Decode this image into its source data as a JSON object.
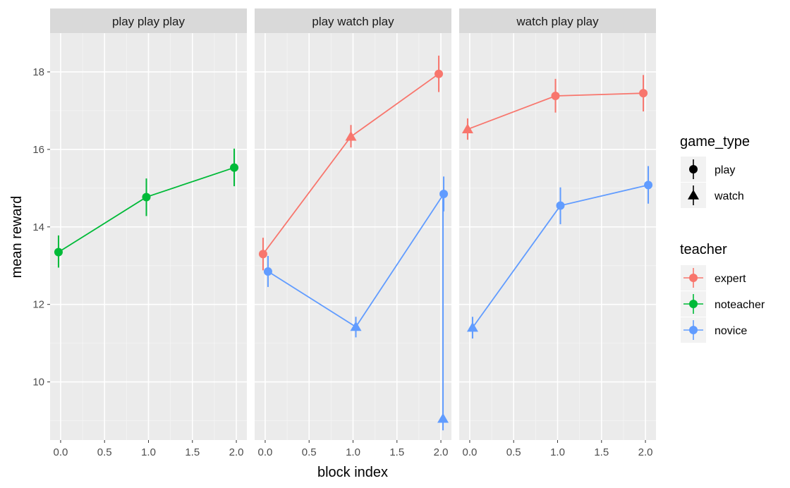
{
  "chart_data": {
    "type": "line",
    "xlabel": "block index",
    "ylabel": "mean reward",
    "xlim": [
      -0.12,
      2.12
    ],
    "ylim": [
      8.5,
      19.0
    ],
    "x_ticks": [
      "0.0",
      "0.5",
      "1.0",
      "1.5",
      "2.0"
    ],
    "y_ticks": [
      "10",
      "12",
      "14",
      "16",
      "18"
    ],
    "grid": true,
    "legend_placement": "right",
    "colors": {
      "expert": "#F8766D",
      "noteacher": "#00BA38",
      "novice": "#619CFF"
    },
    "panels": [
      {
        "title": "play play play",
        "series": [
          {
            "teacher": "noteacher",
            "points": [
              {
                "x": 0,
                "y": 13.35,
                "lo": 12.95,
                "hi": 13.78,
                "game_type": "play"
              },
              {
                "x": 1,
                "y": 14.77,
                "lo": 14.28,
                "hi": 15.25,
                "game_type": "play"
              },
              {
                "x": 2,
                "y": 15.53,
                "lo": 15.05,
                "hi": 16.02,
                "game_type": "play"
              }
            ]
          }
        ]
      },
      {
        "title": "play watch play",
        "series": [
          {
            "teacher": "expert",
            "points": [
              {
                "x": 0,
                "y": 13.3,
                "lo": 12.88,
                "hi": 13.72,
                "game_type": "play"
              },
              {
                "x": 1,
                "y": 16.33,
                "lo": 16.05,
                "hi": 16.63,
                "game_type": "watch"
              },
              {
                "x": 2,
                "y": 17.95,
                "lo": 17.48,
                "hi": 18.42,
                "game_type": "play"
              }
            ]
          },
          {
            "teacher": "novice",
            "points": [
              {
                "x": 0,
                "y": 12.85,
                "lo": 12.45,
                "hi": 13.25,
                "game_type": "play"
              },
              {
                "x": 1,
                "y": 11.42,
                "lo": 11.15,
                "hi": 11.68,
                "game_type": "watch"
              },
              {
                "x": 2,
                "y": 14.85,
                "lo": 14.4,
                "hi": 15.3,
                "game_type": "play"
              }
            ]
          },
          {
            "teacher": "novice",
            "points": [
              {
                "x": 2,
                "y": 9.05,
                "lo": 8.75,
                "hi": 14.85,
                "game_type": "watch"
              }
            ]
          }
        ]
      },
      {
        "title": "watch play play",
        "series": [
          {
            "teacher": "expert",
            "points": [
              {
                "x": 0,
                "y": 16.52,
                "lo": 16.25,
                "hi": 16.8,
                "game_type": "watch"
              },
              {
                "x": 1,
                "y": 17.38,
                "lo": 16.95,
                "hi": 17.82,
                "game_type": "play"
              },
              {
                "x": 2,
                "y": 17.45,
                "lo": 16.98,
                "hi": 17.92,
                "game_type": "play"
              }
            ]
          },
          {
            "teacher": "novice",
            "points": [
              {
                "x": 0,
                "y": 11.4,
                "lo": 11.12,
                "hi": 11.68,
                "game_type": "watch"
              },
              {
                "x": 1,
                "y": 14.55,
                "lo": 14.07,
                "hi": 15.02,
                "game_type": "play"
              },
              {
                "x": 2,
                "y": 15.08,
                "lo": 14.6,
                "hi": 15.57,
                "game_type": "play"
              }
            ]
          }
        ]
      }
    ],
    "legends": [
      {
        "title": "game_type",
        "entries": [
          {
            "label": "play",
            "shape": "circle"
          },
          {
            "label": "watch",
            "shape": "triangle"
          }
        ]
      },
      {
        "title": "teacher",
        "entries": [
          {
            "label": "expert",
            "color": "#F8766D"
          },
          {
            "label": "noteacher",
            "color": "#00BA38"
          },
          {
            "label": "novice",
            "color": "#619CFF"
          }
        ]
      }
    ]
  }
}
